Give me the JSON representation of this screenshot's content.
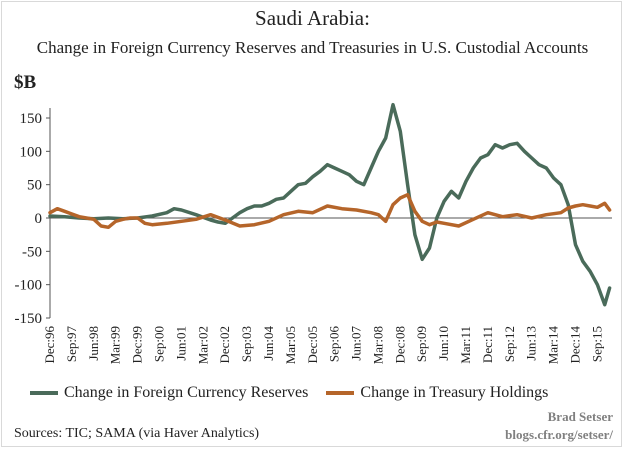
{
  "chart_data": {
    "type": "line",
    "title": "Saudi Arabia:",
    "subtitle": "Change in Foreign Currency Reserves and Treasuries in U.S. Custodial Accounts",
    "ylabel": "$B",
    "ylim": [
      -150,
      175
    ],
    "yticks": [
      150,
      100,
      50,
      0,
      -50,
      -100,
      -150
    ],
    "x_tick_labels": [
      "Dec:96",
      "Sep:97",
      "Jun:98",
      "Mar:99",
      "Dec:99",
      "Sep:00",
      "Jun:01",
      "Mar:02",
      "Dec:02",
      "Sep:03",
      "Jun:04",
      "Mar:05",
      "Dec:05",
      "Sep:06",
      "Jun:07",
      "Mar:08",
      "Dec:08",
      "Sep:09",
      "Jun:10",
      "Mar:11",
      "Dec:11",
      "Sep:12",
      "Jun:13",
      "Mar:14",
      "Dec:14",
      "Sep:15"
    ],
    "grid": false,
    "legend_position": "bottom",
    "series": [
      {
        "name": "Change in Foreign Currency Reserves",
        "color": "#4a6b5a",
        "x": [
          "1996-12",
          "1997-06",
          "1997-12",
          "1998-06",
          "1998-12",
          "1999-06",
          "1999-12",
          "2000-06",
          "2000-12",
          "2001-03",
          "2001-06",
          "2001-12",
          "2002-06",
          "2002-09",
          "2002-12",
          "2003-03",
          "2003-06",
          "2003-09",
          "2003-12",
          "2004-03",
          "2004-06",
          "2004-09",
          "2004-12",
          "2005-03",
          "2005-06",
          "2005-09",
          "2005-12",
          "2006-03",
          "2006-06",
          "2006-09",
          "2006-12",
          "2007-03",
          "2007-06",
          "2007-09",
          "2007-12",
          "2008-03",
          "2008-06",
          "2008-09",
          "2008-12",
          "2009-03",
          "2009-06",
          "2009-09",
          "2009-12",
          "2010-03",
          "2010-06",
          "2010-09",
          "2010-12",
          "2011-03",
          "2011-06",
          "2011-09",
          "2011-12",
          "2012-03",
          "2012-06",
          "2012-09",
          "2012-12",
          "2013-03",
          "2013-06",
          "2013-09",
          "2013-12",
          "2014-03",
          "2014-06",
          "2014-09",
          "2014-12",
          "2015-03",
          "2015-06",
          "2015-09",
          "2015-12",
          "2016-02"
        ],
        "values": [
          3,
          2,
          0,
          -1,
          0,
          -1,
          0,
          3,
          8,
          14,
          12,
          5,
          -3,
          -6,
          -8,
          0,
          8,
          14,
          18,
          18,
          22,
          28,
          30,
          40,
          50,
          52,
          62,
          70,
          80,
          75,
          70,
          65,
          55,
          50,
          75,
          100,
          120,
          170,
          130,
          50,
          -25,
          -62,
          -45,
          0,
          25,
          40,
          30,
          55,
          75,
          90,
          95,
          110,
          105,
          110,
          112,
          100,
          90,
          80,
          75,
          60,
          50,
          20,
          -40,
          -65,
          -80,
          -100,
          -130,
          -105
        ]
      },
      {
        "name": "Change in Treasury Holdings",
        "color": "#b5652a",
        "x": [
          "1996-12",
          "1997-03",
          "1997-06",
          "1997-09",
          "1997-12",
          "1998-03",
          "1998-06",
          "1998-09",
          "1998-12",
          "1999-03",
          "1999-06",
          "1999-09",
          "1999-12",
          "2000-03",
          "2000-06",
          "2000-12",
          "2001-06",
          "2001-12",
          "2002-06",
          "2002-12",
          "2003-06",
          "2003-12",
          "2004-06",
          "2004-12",
          "2005-06",
          "2005-12",
          "2006-06",
          "2006-12",
          "2007-06",
          "2007-12",
          "2008-03",
          "2008-06",
          "2008-09",
          "2008-12",
          "2009-03",
          "2009-06",
          "2009-09",
          "2009-12",
          "2010-03",
          "2010-06",
          "2010-12",
          "2011-06",
          "2011-12",
          "2012-06",
          "2012-12",
          "2013-06",
          "2013-12",
          "2014-06",
          "2014-09",
          "2014-12",
          "2015-03",
          "2015-06",
          "2015-09",
          "2015-12",
          "2016-02"
        ],
        "values": [
          8,
          14,
          10,
          6,
          2,
          0,
          -2,
          -12,
          -14,
          -5,
          -2,
          0,
          0,
          -8,
          -10,
          -8,
          -5,
          -2,
          5,
          -3,
          -12,
          -10,
          -5,
          5,
          10,
          8,
          18,
          14,
          12,
          8,
          5,
          -5,
          20,
          30,
          35,
          10,
          -5,
          -10,
          -6,
          -8,
          -12,
          -2,
          8,
          2,
          5,
          0,
          5,
          8,
          15,
          18,
          20,
          18,
          16,
          22,
          12
        ]
      }
    ]
  },
  "sources": "Sources: TIC; SAMA (via Haver Analytics)",
  "credit": {
    "author": "Brad Setser",
    "site": "blogs.cfr.org/setser/"
  }
}
